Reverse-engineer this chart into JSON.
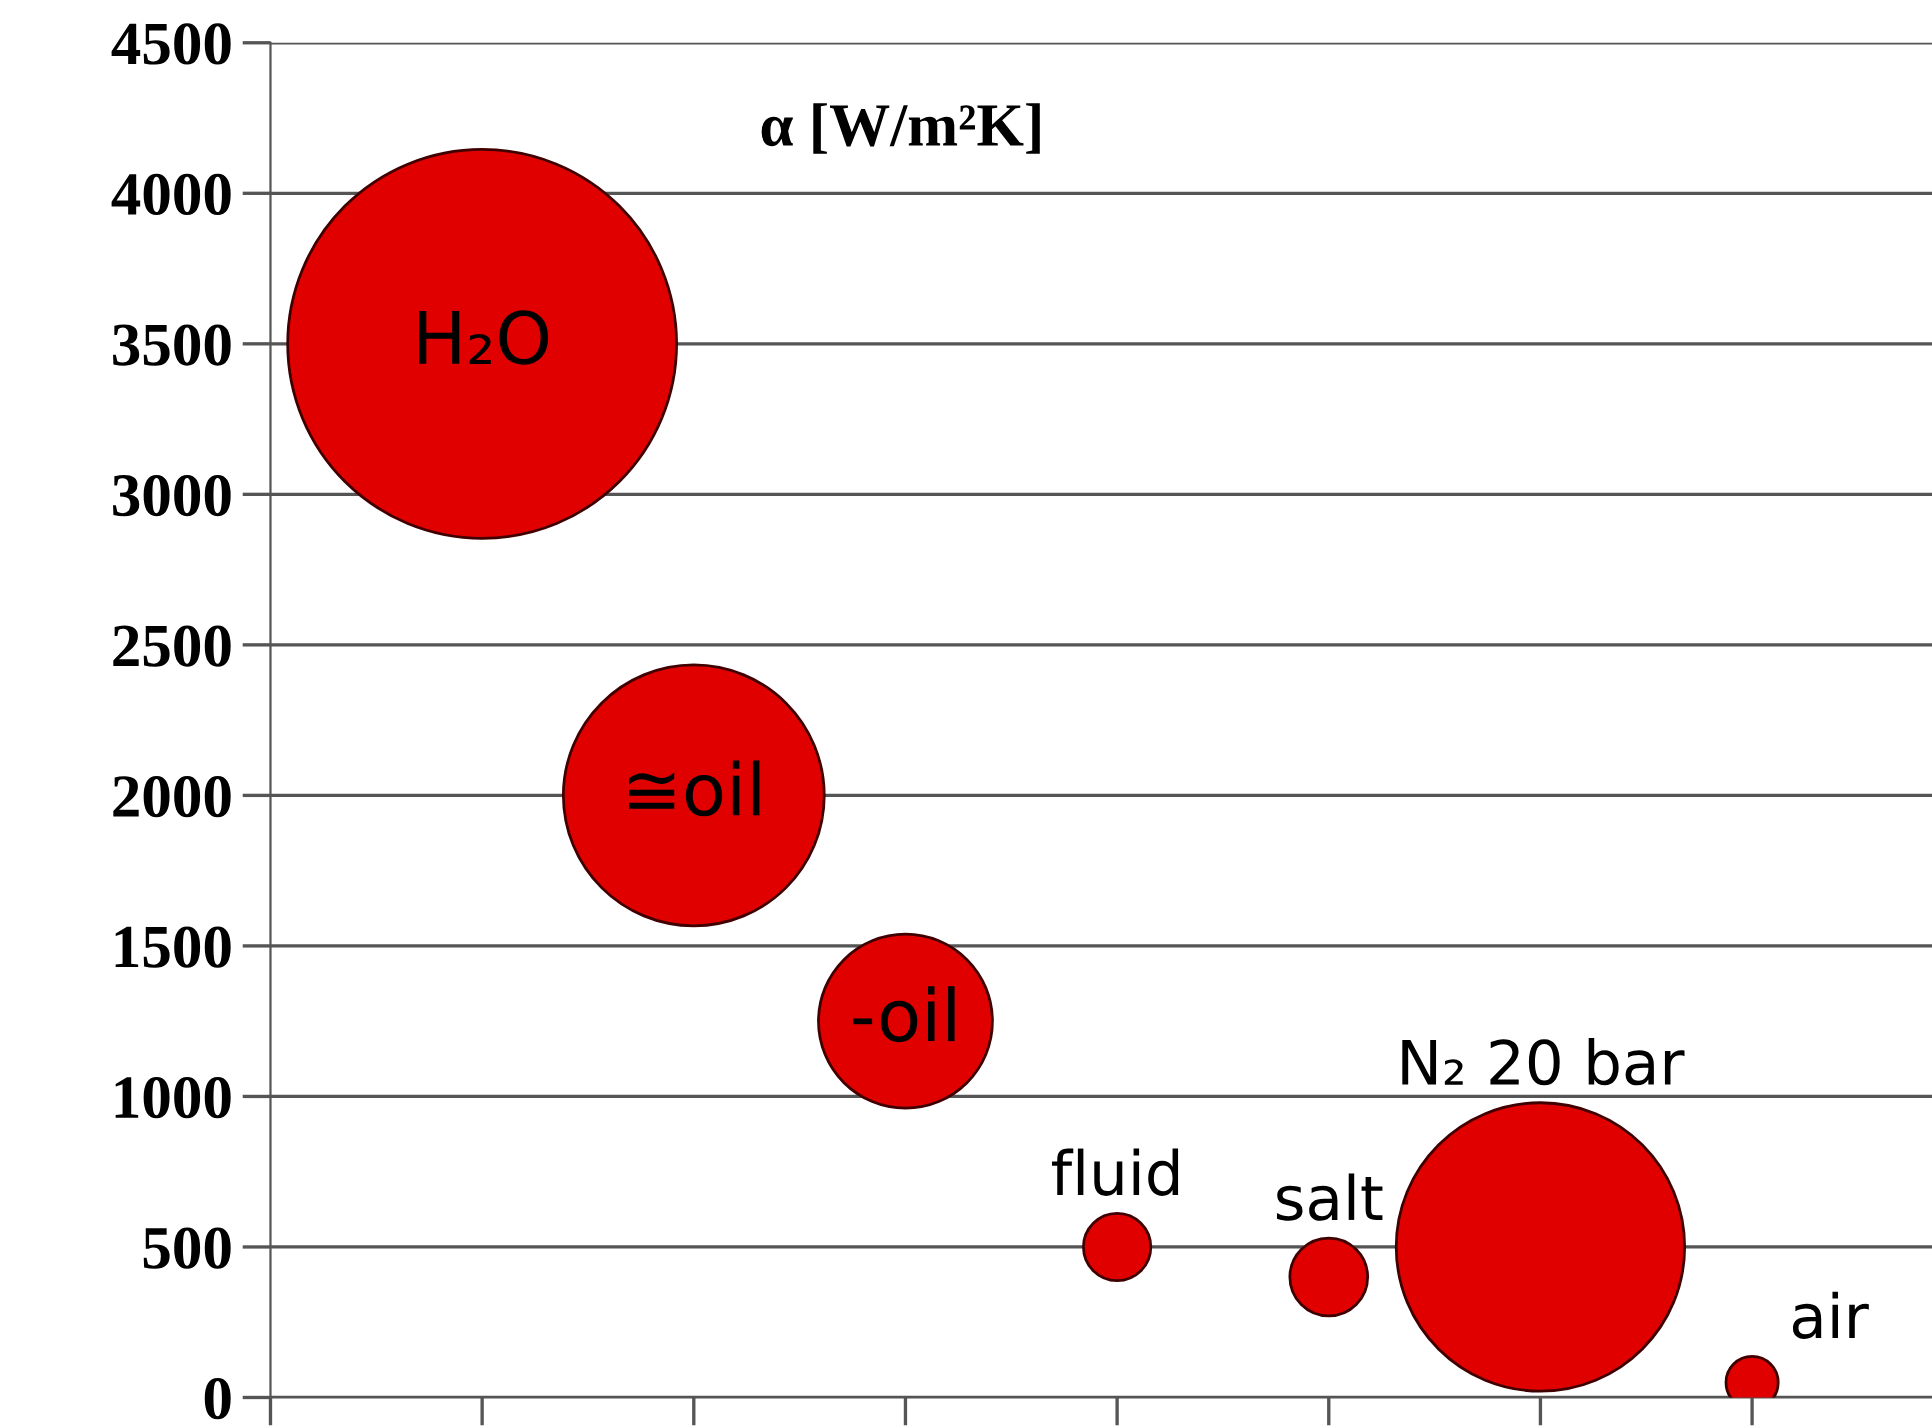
{
  "chart_data": {
    "type": "bubble",
    "title": "α [W/m²K]",
    "categories": [
      null,
      null,
      null,
      null,
      null,
      null,
      null
    ],
    "series": [
      {
        "name": "H₂O",
        "color": "#e00000",
        "values": [
          3500,
          null,
          null,
          null,
          null,
          null,
          null
        ],
        "sizes": [
          1,
          null,
          null,
          null,
          null,
          null,
          null
        ]
      },
      {
        "name": "≅oil",
        "color": "#e00000",
        "values": [
          null,
          2000,
          null,
          null,
          null,
          null,
          null
        ],
        "sizes": [
          null,
          0.45,
          null,
          null,
          null,
          null,
          null
        ]
      },
      {
        "name": "-oil",
        "color": "#e00000",
        "values": [
          null,
          null,
          1250,
          null,
          null,
          null,
          null
        ],
        "sizes": [
          null,
          null,
          0.2,
          null,
          null,
          null,
          null
        ]
      },
      {
        "name": "fluid",
        "color": "#e00000",
        "values": [
          null,
          null,
          null,
          500,
          null,
          null,
          null
        ],
        "sizes": [
          null,
          null,
          null,
          0.03,
          null,
          null,
          null
        ]
      },
      {
        "name": "salt",
        "color": "#e00000",
        "values": [
          null,
          null,
          null,
          null,
          400,
          null,
          null
        ],
        "sizes": [
          null,
          null,
          null,
          null,
          0.04,
          null,
          null
        ]
      },
      {
        "name": "N₂ 20 bar",
        "color": "#e00000",
        "values": [
          null,
          null,
          null,
          null,
          null,
          500,
          null
        ],
        "sizes": [
          null,
          null,
          null,
          null,
          null,
          0.55,
          null
        ]
      },
      {
        "name": "air",
        "color": "#e00000",
        "values": [
          null,
          null,
          null,
          null,
          null,
          null,
          50
        ],
        "sizes": [
          null,
          null,
          null,
          null,
          null,
          null,
          0.018
        ]
      }
    ],
    "ylim": [
      0,
      4500
    ],
    "yticks": [
      0,
      500,
      1000,
      1500,
      2000,
      2500,
      3000,
      3500,
      4000,
      4500
    ],
    "grid": "y",
    "legend": false,
    "marker": "circle"
  }
}
